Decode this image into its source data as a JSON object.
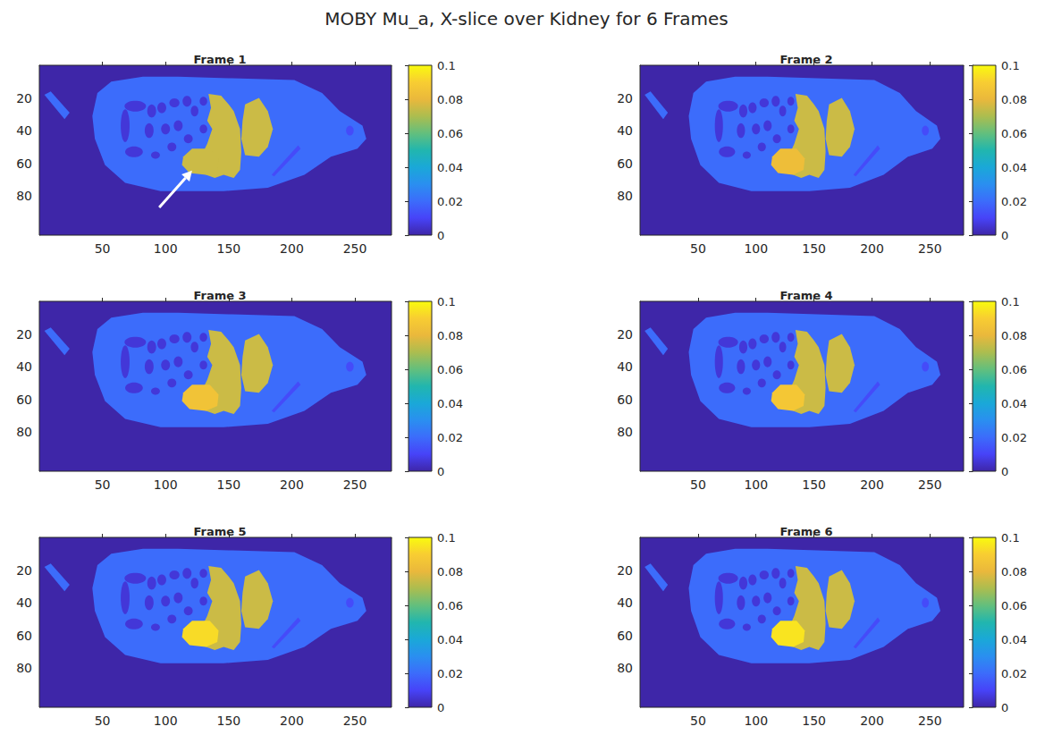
{
  "chart_data": {
    "type": "heatmap",
    "title": "MOBY Mu_a, X-slice over Kidney for 6 Frames",
    "panels": [
      "Frame 1",
      "Frame 2",
      "Frame 3",
      "Frame 4",
      "Frame 5",
      "Frame 6"
    ],
    "xlim": [
      0,
      279
    ],
    "xticks": [
      50,
      100,
      150,
      200,
      250
    ],
    "ylim": [
      0,
      104
    ],
    "yticks": [
      20,
      40,
      60,
      80
    ],
    "colorbar": {
      "range": [
        0,
        0.1
      ],
      "ticks": [
        0,
        0.02,
        0.04,
        0.06,
        0.08,
        0.1
      ]
    },
    "background": [
      0,
      0,
      0,
      0,
      0,
      0
    ],
    "regions": [
      {
        "values": [
          0.02,
          0.02,
          0.02,
          0.02,
          0.02,
          0.02
        ],
        "polygon": [
          [
            42,
            31
          ],
          [
            46,
            17
          ],
          [
            57,
            10
          ],
          [
            82,
            7
          ],
          [
            110,
            7
          ],
          [
            153,
            8
          ],
          [
            202,
            9
          ],
          [
            224,
            17
          ],
          [
            238,
            28
          ],
          [
            256,
            37
          ],
          [
            259,
            45
          ],
          [
            252,
            51
          ],
          [
            231,
            56
          ],
          [
            210,
            67
          ],
          [
            181,
            75
          ],
          [
            146,
            77
          ],
          [
            96,
            77
          ],
          [
            68,
            72
          ],
          [
            52,
            61
          ],
          [
            44,
            45
          ]
        ]
      },
      {
        "values": [
          0.02,
          0.02,
          0.02,
          0.02,
          0.02,
          0.02
        ],
        "polygon": [
          [
            4,
            18
          ],
          [
            9,
            16
          ],
          [
            24,
            29
          ],
          [
            20,
            33
          ]
        ]
      },
      {
        "values": [
          0.012,
          0.012,
          0.012,
          0.012,
          0.012,
          0.012
        ],
        "polygon": [
          [
            184,
            67
          ],
          [
            186,
            68
          ],
          [
            207,
            51
          ],
          [
            205,
            49
          ]
        ]
      },
      {
        "values": [
          0.012,
          0.012,
          0.012,
          0.012,
          0.012,
          0.012
        ],
        "ellipse": {
          "center": [
            246,
            40
          ],
          "radius": [
            3,
            3
          ]
        }
      },
      {
        "values": [
          0.006,
          0.006,
          0.006,
          0.006,
          0.006,
          0.006
        ],
        "ellipse": {
          "center": [
            76,
            25
          ],
          "radius": [
            8.5,
            3.3
          ]
        }
      },
      {
        "values": [
          0.006,
          0.006,
          0.006,
          0.006,
          0.006,
          0.006
        ],
        "ellipse": {
          "center": [
            68,
            37
          ],
          "radius": [
            3.5,
            10
          ]
        }
      },
      {
        "values": [
          0.006,
          0.006,
          0.006,
          0.006,
          0.006,
          0.006
        ],
        "ellipse": {
          "center": [
            75,
            53
          ],
          "radius": [
            7,
            3.3
          ]
        }
      },
      {
        "values": [
          0.006,
          0.006,
          0.006,
          0.006,
          0.006,
          0.006
        ],
        "ellipse": {
          "center": [
            89,
            28
          ],
          "radius": [
            3.5,
            4
          ]
        }
      },
      {
        "values": [
          0.006,
          0.006,
          0.006,
          0.006,
          0.006,
          0.006
        ],
        "ellipse": {
          "center": [
            87,
            40
          ],
          "radius": [
            3.5,
            4.5
          ]
        }
      },
      {
        "values": [
          0.006,
          0.006,
          0.006,
          0.006,
          0.006,
          0.006
        ],
        "ellipse": {
          "center": [
            97,
            26
          ],
          "radius": [
            3.5,
            3.3
          ]
        }
      },
      {
        "values": [
          0.006,
          0.006,
          0.006,
          0.006,
          0.006,
          0.006
        ],
        "ellipse": {
          "center": [
            107,
            23
          ],
          "radius": [
            4,
            2.7
          ]
        }
      },
      {
        "values": [
          0.006,
          0.006,
          0.006,
          0.006,
          0.006,
          0.006
        ],
        "ellipse": {
          "center": [
            117,
            22
          ],
          "radius": [
            3.5,
            3.3
          ]
        }
      },
      {
        "values": [
          0.006,
          0.006,
          0.006,
          0.006,
          0.006,
          0.006
        ],
        "ellipse": {
          "center": [
            100,
            39
          ],
          "radius": [
            3.5,
            3.3
          ]
        }
      },
      {
        "values": [
          0.006,
          0.006,
          0.006,
          0.006,
          0.006,
          0.006
        ],
        "ellipse": {
          "center": [
            110,
            37
          ],
          "radius": [
            3.5,
            3.3
          ]
        }
      },
      {
        "values": [
          0.006,
          0.006,
          0.006,
          0.006,
          0.006,
          0.006
        ],
        "ellipse": {
          "center": [
            123,
            28
          ],
          "radius": [
            3,
            3.3
          ]
        }
      },
      {
        "values": [
          0.006,
          0.006,
          0.006,
          0.006,
          0.006,
          0.006
        ],
        "ellipse": {
          "center": [
            130,
            39
          ],
          "radius": [
            3,
            2.7
          ]
        }
      },
      {
        "values": [
          0.006,
          0.006,
          0.006,
          0.006,
          0.006,
          0.006
        ],
        "ellipse": {
          "center": [
            118,
            45
          ],
          "radius": [
            3.5,
            2.7
          ]
        }
      },
      {
        "values": [
          0.006,
          0.006,
          0.006,
          0.006,
          0.006,
          0.006
        ],
        "ellipse": {
          "center": [
            130,
            22
          ],
          "radius": [
            3,
            2.7
          ]
        }
      },
      {
        "values": [
          0.006,
          0.006,
          0.006,
          0.006,
          0.006,
          0.006
        ],
        "ellipse": {
          "center": [
            105,
            50
          ],
          "radius": [
            3.5,
            2.7
          ]
        }
      },
      {
        "values": [
          0.006,
          0.006,
          0.006,
          0.006,
          0.006,
          0.006
        ],
        "ellipse": {
          "center": [
            92,
            55
          ],
          "radius": [
            3.5,
            2.2
          ]
        }
      },
      {
        "values": [
          0.075,
          0.075,
          0.075,
          0.075,
          0.075,
          0.075
        ],
        "polygon": [
          [
            134,
            17.5
          ],
          [
            144,
            18.6
          ],
          [
            150,
            24
          ],
          [
            154,
            28
          ],
          [
            159,
            39
          ],
          [
            160,
            53
          ],
          [
            159,
            64
          ],
          [
            154,
            69
          ],
          [
            146,
            67
          ],
          [
            139,
            69
          ],
          [
            132,
            67
          ],
          [
            126,
            64
          ],
          [
            128,
            56
          ],
          [
            133,
            48
          ],
          [
            137,
            39
          ],
          [
            133,
            34
          ],
          [
            136,
            26
          ]
        ]
      },
      {
        "values": [
          0.075,
          0.075,
          0.075,
          0.075,
          0.075,
          0.075
        ],
        "polygon": [
          [
            163,
            24
          ],
          [
            174,
            20
          ],
          [
            181,
            28
          ],
          [
            185,
            39
          ],
          [
            181,
            50
          ],
          [
            174,
            56
          ],
          [
            163,
            55
          ],
          [
            160,
            45
          ],
          [
            161,
            34
          ]
        ]
      },
      {
        "values": [
          0.075,
          0.083,
          0.085,
          0.087,
          0.093,
          0.095
        ],
        "polygon": [
          [
            114,
            56
          ],
          [
            121,
            51
          ],
          [
            135,
            51
          ],
          [
            142,
            57
          ],
          [
            141,
            64
          ],
          [
            132,
            67
          ],
          [
            119,
            66
          ],
          [
            113,
            61
          ]
        ]
      }
    ],
    "arrow": {
      "panel": "Frame 1",
      "from": [
        95,
        87
      ],
      "to": [
        121,
        64.5
      ],
      "color": "#ffffff"
    }
  }
}
